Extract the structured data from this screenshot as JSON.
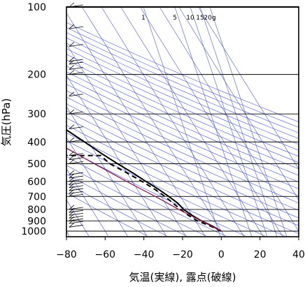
{
  "chart_data": {
    "type": "line",
    "subtype": "skew-T log-P diagram",
    "xlabel": "気温(実線), 露点(破線)",
    "ylabel": "気圧(hPa)",
    "xlim": [
      -80,
      40
    ],
    "ylim": [
      1030,
      100
    ],
    "y_scale": "log",
    "x_ticks": [
      -80,
      -60,
      -40,
      -20,
      0,
      20,
      40
    ],
    "y_ticks": [
      100,
      200,
      300,
      400,
      500,
      600,
      700,
      800,
      900,
      1000
    ],
    "x_tick_labels": [
      "−80",
      "−60",
      "−40",
      "−20",
      "0",
      "20",
      "40"
    ],
    "y_tick_labels": [
      "100",
      "200",
      "300",
      "400",
      "500",
      "600",
      "700",
      "800",
      "900",
      "1000"
    ],
    "mixing_ratio_labels": [
      "1",
      "5",
      "10",
      "15",
      "20g"
    ],
    "series": [
      {
        "role": "temperature",
        "style": "solid",
        "color": "#000000",
        "points": [
          [
            1000,
            0
          ],
          [
            950,
            -3
          ],
          [
            900,
            -7
          ],
          [
            850,
            -10
          ],
          [
            800,
            -12.5
          ],
          [
            750,
            -13.5
          ],
          [
            700,
            -16
          ],
          [
            650,
            -19
          ],
          [
            600,
            -23
          ],
          [
            550,
            -27
          ],
          [
            500,
            -32
          ],
          [
            450,
            -37
          ],
          [
            400,
            -42
          ],
          [
            350,
            -48
          ],
          [
            300,
            -53
          ],
          [
            250,
            -56
          ],
          [
            200,
            -57
          ],
          [
            150,
            -58
          ],
          [
            120,
            -58
          ],
          [
            100,
            -58
          ]
        ]
      },
      {
        "role": "dewpoint",
        "style": "dashed",
        "color": "#000000",
        "points": [
          [
            1000,
            0
          ],
          [
            950,
            -4
          ],
          [
            900,
            -9
          ],
          [
            850,
            -12
          ],
          [
            800,
            -14
          ],
          [
            750,
            -16
          ],
          [
            700,
            -18
          ],
          [
            650,
            -21
          ],
          [
            600,
            -25
          ],
          [
            550,
            -30
          ],
          [
            500,
            -36
          ],
          [
            460,
            -38
          ],
          [
            460,
            -75
          ]
        ]
      },
      {
        "role": "parcel",
        "style": "solid",
        "color": "#8b1a5a",
        "points": [
          [
            1000,
            0
          ],
          [
            900,
            -7
          ],
          [
            800,
            -15
          ],
          [
            700,
            -23
          ],
          [
            600,
            -33
          ],
          [
            500,
            -44
          ],
          [
            400,
            -57
          ],
          [
            300,
            -73
          ],
          [
            265,
            -80
          ]
        ]
      }
    ],
    "wind": {
      "x_position": -75,
      "barbs": [
        {
          "p": 960
        },
        {
          "p": 925
        },
        {
          "p": 900
        },
        {
          "p": 875
        },
        {
          "p": 850
        },
        {
          "p": 825
        },
        {
          "p": 800
        },
        {
          "p": 700
        },
        {
          "p": 680
        },
        {
          "p": 660
        },
        {
          "p": 640
        },
        {
          "p": 620
        },
        {
          "p": 600
        },
        {
          "p": 580
        },
        {
          "p": 560
        },
        {
          "p": 500
        },
        {
          "p": 480
        },
        {
          "p": 460
        },
        {
          "p": 400
        },
        {
          "p": 350
        },
        {
          "p": 300
        },
        {
          "p": 250
        },
        {
          "p": 200
        },
        {
          "p": 190
        },
        {
          "p": 180
        },
        {
          "p": 175
        },
        {
          "p": 150
        },
        {
          "p": 125
        },
        {
          "p": 100
        }
      ]
    },
    "colors": {
      "grid": "#000000",
      "adiabats": "#4a58d8",
      "parcel": "#8b1a5a",
      "temperature": "#000000"
    }
  }
}
